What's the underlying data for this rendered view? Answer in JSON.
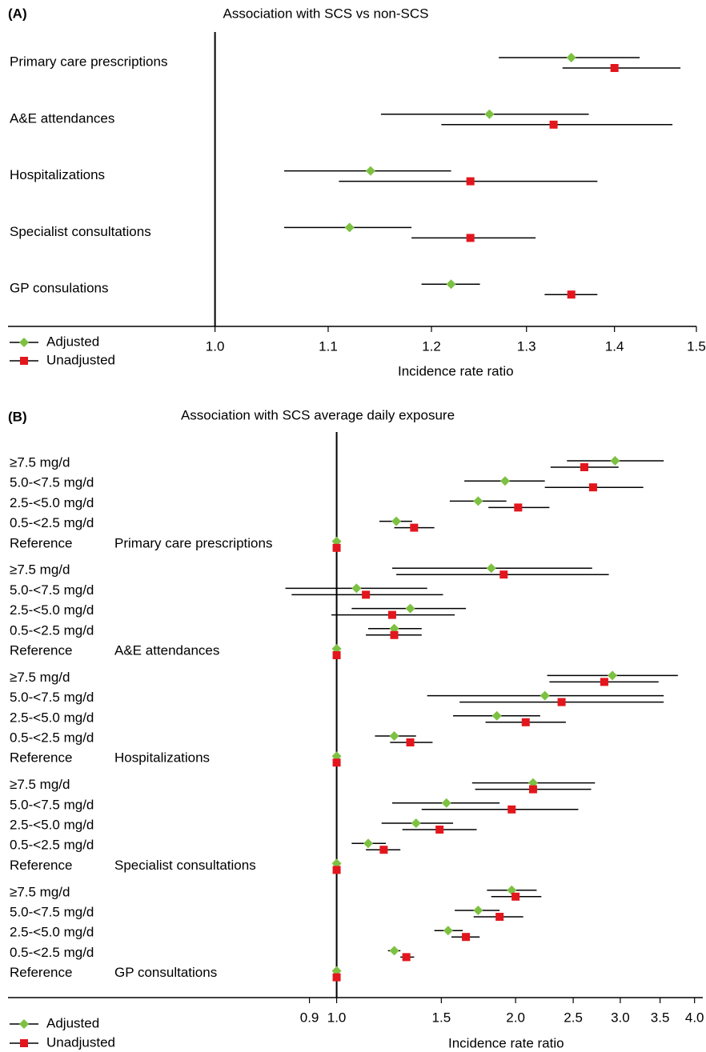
{
  "chart_data": [
    {
      "type": "forest",
      "panel_label": "(A)",
      "title": "Association with SCS vs non-SCS",
      "x_label": "Incidence rate ratio",
      "xscale": "log",
      "xlim": [
        0.84,
        1.5
      ],
      "refline": 1,
      "xticks": [
        {
          "value": 1,
          "label": "1.0"
        },
        1.1,
        1.2,
        1.3,
        1.4,
        1.5
      ],
      "categories": [
        "Primary care prescriptions",
        "A&E attendances",
        "Hospitalizations",
        "Specialist consultations",
        "GP consulations"
      ],
      "series": [
        {
          "name": "Adjusted",
          "color": "#7dc142",
          "marker": "diamond",
          "values": [
            1.35,
            1.26,
            1.14,
            1.12,
            1.22
          ],
          "lower": [
            1.27,
            1.15,
            1.06,
            1.06,
            1.19
          ],
          "upper": [
            1.43,
            1.37,
            1.22,
            1.18,
            1.25
          ]
        },
        {
          "name": "Unadjusted",
          "color": "#e3161d",
          "marker": "square",
          "values": [
            1.4,
            1.33,
            1.24,
            1.24,
            1.35
          ],
          "lower": [
            1.34,
            1.21,
            1.11,
            1.18,
            1.32
          ],
          "upper": [
            1.48,
            1.47,
            1.38,
            1.31,
            1.38
          ]
        }
      ]
    },
    {
      "type": "forest",
      "panel_label": "(B)",
      "title": "Association with SCS average daily exposure",
      "x_label": "Incidence rate ratio",
      "xscale": "log",
      "xlim": [
        0.28,
        4.13
      ],
      "refline": 1,
      "xticks": [
        0.9,
        {
          "value": 1,
          "label": "1.0"
        },
        1.5,
        {
          "value": 2,
          "label": "2.0"
        },
        2.5,
        {
          "value": 3,
          "label": "3.0"
        },
        3.5,
        {
          "value": 4,
          "label": "4.0"
        }
      ],
      "groups": [
        "Primary care prescriptions",
        "A&E attendances",
        "Hospitalizations",
        "Specialist consultations",
        "GP consultations"
      ],
      "categories": [
        "≥7.5 mg/d",
        "5.0-<7.5 mg/d",
        "2.5-<5.0 mg/d",
        "0.5-<2.5 mg/d",
        "Reference",
        "≥7.5 mg/d",
        "5.0-<7.5 mg/d",
        "2.5-<5.0 mg/d",
        "0.5-<2.5 mg/d",
        "Reference",
        "≥7.5 mg/d",
        "5.0-<7.5 mg/d",
        "2.5-<5.0 mg/d",
        "0.5-<2.5 mg/d",
        "Reference",
        "≥7.5 mg/d",
        "5.0-<7.5 mg/d",
        "2.5-<5.0 mg/d",
        "0.5-<2.5 mg/d",
        "Reference",
        "≥7.5 mg/d",
        "5.0-<7.5 mg/d",
        "2.5-<5.0 mg/d",
        "0.5-<2.5 mg/d",
        "Reference"
      ],
      "series": [
        {
          "name": "Adjusted",
          "color": "#7dc142",
          "marker": "diamond",
          "values": [
            2.94,
            1.92,
            1.73,
            1.26,
            1,
            1.82,
            1.08,
            1.33,
            1.25,
            1,
            2.91,
            2.24,
            1.86,
            1.25,
            1,
            2.14,
            1.53,
            1.36,
            1.13,
            1,
            1.97,
            1.73,
            1.54,
            1.25,
            1
          ],
          "lower": [
            2.44,
            1.64,
            1.55,
            1.18,
            null,
            1.24,
            0.82,
            1.06,
            1.13,
            null,
            2.26,
            1.42,
            1.57,
            1.16,
            null,
            1.69,
            1.24,
            1.19,
            1.06,
            null,
            1.79,
            1.58,
            1.46,
            1.22,
            null
          ],
          "upper": [
            3.55,
            2.24,
            1.93,
            1.34,
            null,
            2.69,
            1.42,
            1.65,
            1.39,
            null,
            3.75,
            3.55,
            2.2,
            1.36,
            null,
            2.72,
            1.88,
            1.57,
            1.21,
            null,
            2.17,
            1.88,
            1.63,
            1.28,
            null
          ]
        },
        {
          "name": "Unadjusted",
          "color": "#e3161d",
          "marker": "square",
          "values": [
            2.61,
            2.7,
            2.02,
            1.35,
            1,
            1.91,
            1.12,
            1.24,
            1.25,
            1,
            2.82,
            2.39,
            2.08,
            1.33,
            1,
            2.14,
            1.97,
            1.49,
            1.2,
            1,
            2.0,
            1.88,
            1.65,
            1.31,
            1
          ],
          "lower": [
            2.29,
            2.24,
            1.8,
            1.25,
            null,
            1.26,
            0.84,
            0.98,
            1.12,
            null,
            2.28,
            1.61,
            1.78,
            1.23,
            null,
            1.71,
            1.39,
            1.29,
            1.12,
            null,
            1.82,
            1.7,
            1.56,
            1.28,
            null
          ],
          "upper": [
            2.98,
            3.28,
            2.28,
            1.46,
            null,
            2.87,
            1.51,
            1.58,
            1.39,
            null,
            3.48,
            3.55,
            2.43,
            1.45,
            null,
            2.68,
            2.55,
            1.72,
            1.28,
            null,
            2.21,
            2.06,
            1.74,
            1.35,
            null
          ]
        }
      ]
    }
  ]
}
